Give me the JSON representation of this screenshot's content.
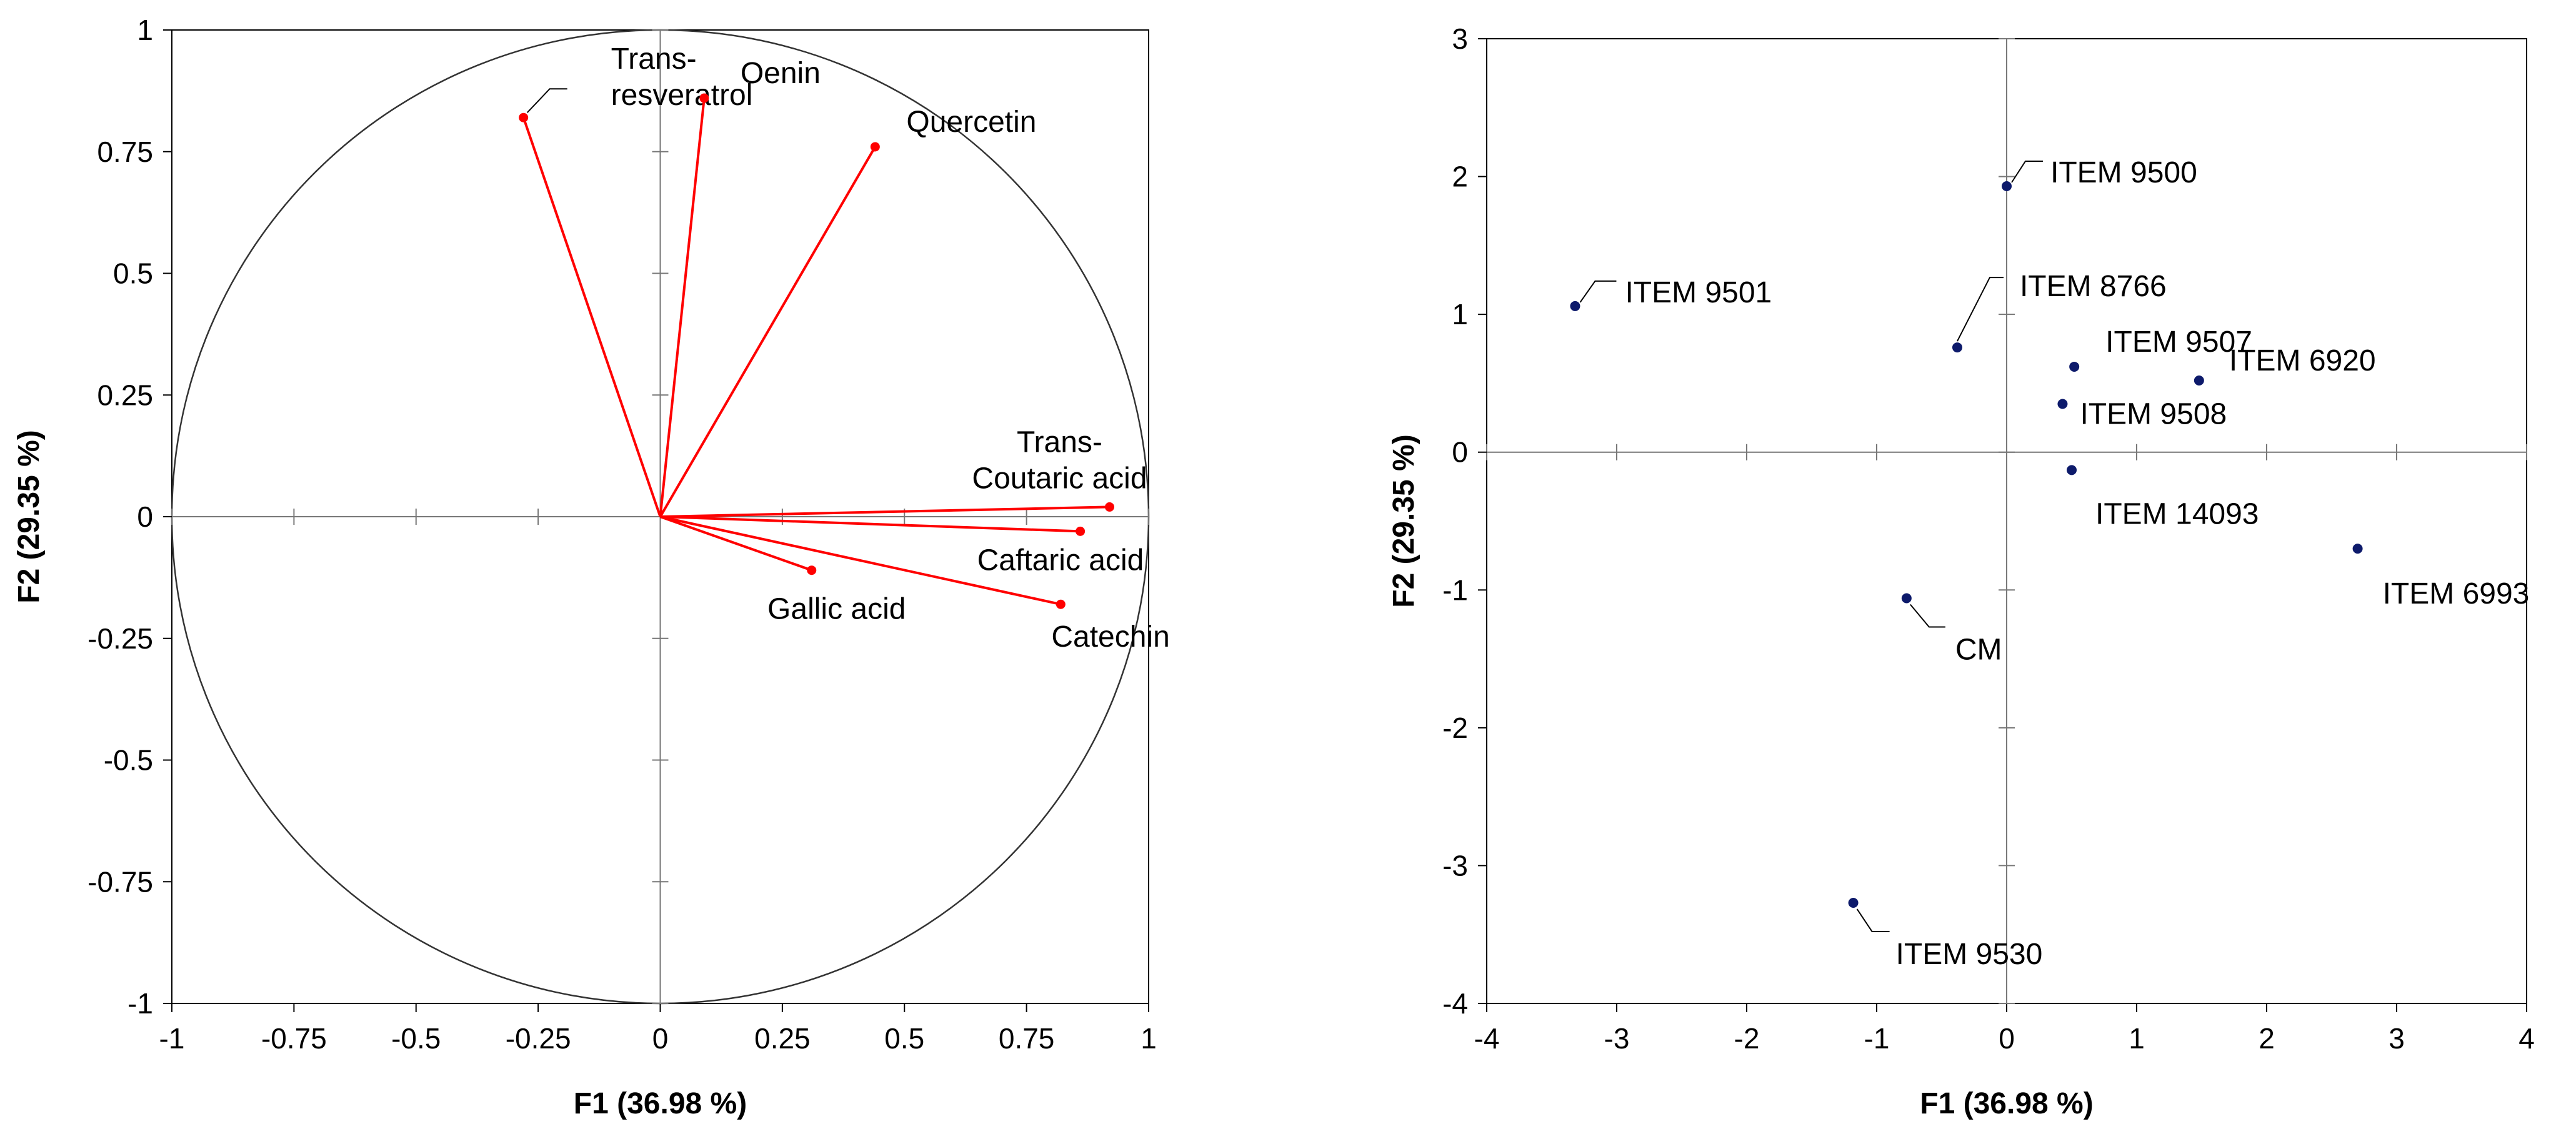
{
  "chart_data": [
    {
      "type": "scatter",
      "subtype": "correlation-circle",
      "title": "",
      "xlabel": "F1 (36.98 %)",
      "ylabel": "F2 (29.35 %)",
      "xlim": [
        -1,
        1
      ],
      "ylim": [
        -1,
        1
      ],
      "x_ticks": [
        -1,
        -0.75,
        -0.5,
        -0.25,
        0,
        0.25,
        0.5,
        0.75,
        1
      ],
      "y_ticks": [
        -1,
        -0.75,
        -0.5,
        -0.25,
        0,
        0.25,
        0.5,
        0.75,
        1
      ],
      "x_tick_labels": [
        "-1",
        "-0.75",
        "-0.5",
        "-0.25",
        "0",
        "0.25",
        "0.5",
        "0.75",
        "1"
      ],
      "y_tick_labels": [
        "-1",
        "-0.75",
        "-0.5",
        "-0.25",
        "0",
        "0.25",
        "0.5",
        "0.75",
        "1"
      ],
      "vector_color": "#ff0000",
      "points": [
        {
          "label": "Trans-resveratrol",
          "lines": [
            "Trans-",
            "resveratrol"
          ],
          "x": -0.28,
          "y": 0.82
        },
        {
          "label": "Oenin",
          "lines": [
            "Oenin"
          ],
          "x": 0.09,
          "y": 0.86
        },
        {
          "label": "Quercetin",
          "lines": [
            "Quercetin"
          ],
          "x": 0.44,
          "y": 0.76
        },
        {
          "label": "Trans-Coutaric acid",
          "lines": [
            "Trans-",
            "Coutaric acid"
          ],
          "x": 0.92,
          "y": 0.02
        },
        {
          "label": "Caftaric acid",
          "lines": [
            "Caftaric acid"
          ],
          "x": 0.86,
          "y": -0.03
        },
        {
          "label": "Gallic acid",
          "lines": [
            "Gallic acid"
          ],
          "x": 0.31,
          "y": -0.11
        },
        {
          "label": "Catechin",
          "lines": [
            "Catechin"
          ],
          "x": 0.82,
          "y": -0.18
        }
      ]
    },
    {
      "type": "scatter",
      "title": "",
      "xlabel": "F1 (36.98 %)",
      "ylabel": "F2 (29.35 %)",
      "xlim": [
        -4,
        4
      ],
      "ylim": [
        -4,
        3
      ],
      "x_ticks": [
        -4,
        -3,
        -2,
        -1,
        0,
        1,
        2,
        3,
        4
      ],
      "y_ticks": [
        -4,
        -3,
        -2,
        -1,
        0,
        1,
        2,
        3
      ],
      "x_tick_labels": [
        "-4",
        "-3",
        "-2",
        "-1",
        "0",
        "1",
        "2",
        "3",
        "4"
      ],
      "y_tick_labels": [
        "-4",
        "-3",
        "-2",
        "-1",
        "0",
        "1",
        "2",
        "3"
      ],
      "point_color": "#0d1a6b",
      "points": [
        {
          "label": "ITEM 9500",
          "x": 0.0,
          "y": 1.93
        },
        {
          "label": "ITEM 9501",
          "x": -3.32,
          "y": 1.06
        },
        {
          "label": "ITEM 8766",
          "x": -0.38,
          "y": 0.76
        },
        {
          "label": "ITEM 9507",
          "x": 0.52,
          "y": 0.62
        },
        {
          "label": "ITEM 6920",
          "x": 1.48,
          "y": 0.52
        },
        {
          "label": "ITEM 9508",
          "x": 0.43,
          "y": 0.35
        },
        {
          "label": "ITEM 14093",
          "x": 0.5,
          "y": -0.13
        },
        {
          "label": "ITEM 6993",
          "x": 2.7,
          "y": -0.7
        },
        {
          "label": "CM",
          "x": -0.77,
          "y": -1.06
        },
        {
          "label": "ITEM 9530",
          "x": -1.18,
          "y": -3.27
        }
      ]
    }
  ]
}
